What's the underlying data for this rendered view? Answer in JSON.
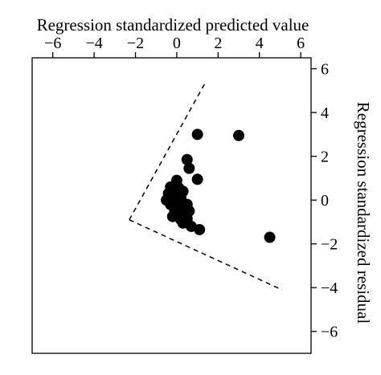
{
  "chart_data": {
    "type": "scatter",
    "title": "",
    "xlabel": "Regression standardized predicted value",
    "ylabel": "Regression standardized residual",
    "xlim": [
      -7,
      6.5
    ],
    "ylim": [
      -7,
      6.5
    ],
    "x_ticks": [
      -6,
      -4,
      -2,
      0,
      2,
      4,
      6
    ],
    "x_tick_labels": [
      "−6",
      "−4",
      "−2",
      "0",
      "2",
      "4",
      "6"
    ],
    "y_ticks": [
      6,
      4,
      2,
      0,
      -2,
      -4,
      -6
    ],
    "y_tick_labels": [
      "6",
      "4",
      "2",
      "0",
      "−2",
      "−4",
      "−6"
    ],
    "x_axis_position": "top",
    "y_axis_position": "right",
    "grid": false,
    "legend": "none",
    "point_color": "#000000",
    "dashed_funnel": {
      "style": "dashed",
      "vertex": {
        "x": -2.3,
        "y": -0.9
      },
      "upper_end": {
        "x": 1.4,
        "y": 5.4
      },
      "lower_end": {
        "x": 5.1,
        "y": -4.1
      }
    },
    "points": [
      {
        "x": 1.0,
        "y": 3.0
      },
      {
        "x": 3.0,
        "y": 2.95
      },
      {
        "x": 0.5,
        "y": 1.85
      },
      {
        "x": 0.6,
        "y": 1.45
      },
      {
        "x": 1.0,
        "y": 0.95
      },
      {
        "x": 0.0,
        "y": 0.9
      },
      {
        "x": -0.3,
        "y": 0.6
      },
      {
        "x": 0.1,
        "y": 0.55
      },
      {
        "x": -0.4,
        "y": 0.3
      },
      {
        "x": 0.3,
        "y": 0.4
      },
      {
        "x": -0.2,
        "y": 0.2
      },
      {
        "x": 0.2,
        "y": 0.1
      },
      {
        "x": -0.5,
        "y": 0.0
      },
      {
        "x": 0.0,
        "y": -0.05
      },
      {
        "x": -0.3,
        "y": -0.2
      },
      {
        "x": 0.1,
        "y": -0.3
      },
      {
        "x": 0.5,
        "y": -0.2
      },
      {
        "x": -0.1,
        "y": -0.45
      },
      {
        "x": 0.3,
        "y": -0.6
      },
      {
        "x": 0.6,
        "y": -0.5
      },
      {
        "x": -0.2,
        "y": -0.75
      },
      {
        "x": 0.2,
        "y": -0.9
      },
      {
        "x": 0.5,
        "y": -0.85
      },
      {
        "x": 0.3,
        "y": -1.05
      },
      {
        "x": 0.7,
        "y": -1.2
      },
      {
        "x": 1.1,
        "y": -1.35
      },
      {
        "x": 4.5,
        "y": -1.7
      }
    ]
  }
}
